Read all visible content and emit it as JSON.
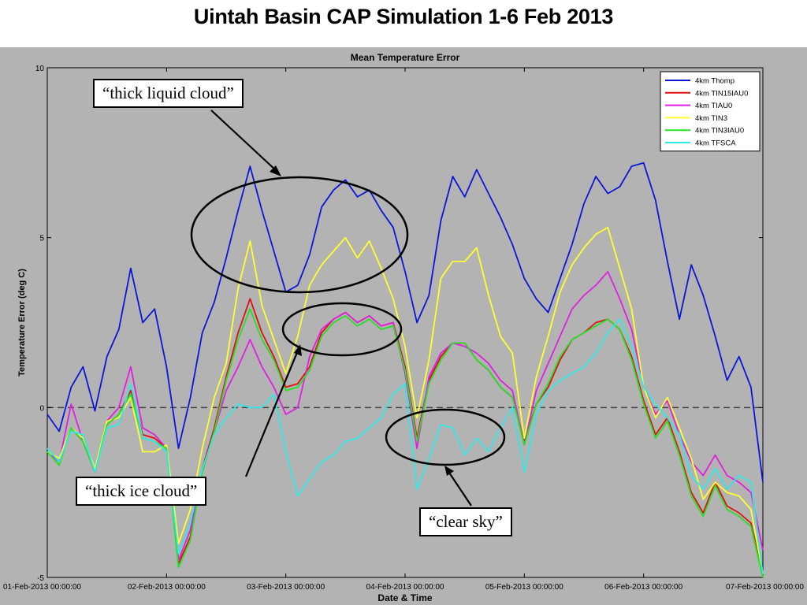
{
  "slide_title": "Uintah Basin CAP Simulation 1-6 Feb 2013",
  "callouts": {
    "liquid": "“thick liquid cloud”",
    "ice": "“thick ice cloud”",
    "clear": "“clear sky”"
  },
  "chart_data": {
    "type": "line",
    "title": "Mean Temperature Error",
    "xlabel": "Date & Time",
    "ylabel": "Temperature Error (deg C)",
    "ylim": [
      -5,
      10
    ],
    "yticks": [
      "-5",
      "0",
      "5",
      "10"
    ],
    "xlim": [
      "01-Feb-2013 00:00:00",
      "07-Feb-2013 00:00:00"
    ],
    "xticks": [
      "01-Feb-2013 00:00:00",
      "02-Feb-2013 00:00:00",
      "03-Feb-2013 00:00:00",
      "04-Feb-2013 00:00:00",
      "05-Feb-2013 00:00:00",
      "06-Feb-2013 00:00:00",
      "07-Feb-2013 00:00:00"
    ],
    "x_days": [
      0,
      0.1,
      0.2,
      0.3,
      0.4,
      0.5,
      0.6,
      0.7,
      0.8,
      0.9,
      1,
      1.1,
      1.2,
      1.3,
      1.4,
      1.5,
      1.6,
      1.7,
      1.8,
      1.9,
      2,
      2.1,
      2.2,
      2.3,
      2.4,
      2.5,
      2.6,
      2.7,
      2.8,
      2.9,
      3,
      3.1,
      3.2,
      3.3,
      3.4,
      3.5,
      3.6,
      3.7,
      3.8,
      3.9,
      4,
      4.1,
      4.2,
      4.3,
      4.4,
      4.5,
      4.6,
      4.7,
      4.8,
      4.9,
      5,
      5.1,
      5.2,
      5.3,
      5.4,
      5.5,
      5.6,
      5.7,
      5.8,
      5.9,
      6
    ],
    "zero_line": "dashed",
    "legend_position": "top-right",
    "series": [
      {
        "name": "4km Thomp",
        "color": "#0b17d6",
        "values": [
          -0.2,
          -0.7,
          0.6,
          1.2,
          -0.1,
          1.5,
          2.3,
          4.1,
          2.5,
          2.9,
          1.2,
          -1.2,
          0.3,
          2.2,
          3.1,
          4.4,
          5.8,
          7.1,
          5.8,
          4.6,
          3.4,
          3.6,
          4.5,
          5.9,
          6.4,
          6.7,
          6.2,
          6.4,
          5.8,
          5.3,
          4.0,
          2.5,
          3.3,
          5.5,
          6.8,
          6.2,
          7.0,
          6.3,
          5.6,
          4.8,
          3.8,
          3.2,
          2.8,
          3.8,
          4.8,
          6.0,
          6.8,
          6.3,
          6.5,
          7.1,
          7.2,
          6.1,
          4.3,
          2.6,
          4.2,
          3.3,
          2.1,
          0.8,
          1.5,
          0.6,
          -2.2
        ]
      },
      {
        "name": "4km TIN15IAU0",
        "color": "#e01010",
        "values": [
          -1.3,
          -1.6,
          -0.6,
          -1.0,
          -1.9,
          -0.5,
          -0.2,
          0.5,
          -0.8,
          -0.9,
          -1.2,
          -4.6,
          -3.8,
          -1.8,
          -0.6,
          0.9,
          2.2,
          3.2,
          2.2,
          1.5,
          0.6,
          0.7,
          1.2,
          2.2,
          2.6,
          2.8,
          2.5,
          2.7,
          2.4,
          2.5,
          1.2,
          -0.9,
          0.8,
          1.5,
          1.9,
          1.9,
          1.4,
          1.1,
          0.6,
          0.3,
          -1.0,
          0.1,
          0.6,
          1.4,
          2.0,
          2.2,
          2.5,
          2.6,
          2.3,
          1.5,
          0.2,
          -0.8,
          -0.3,
          -1.3,
          -2.5,
          -3.1,
          -2.2,
          -2.9,
          -3.1,
          -3.4,
          -4.9
        ]
      },
      {
        "name": "4km TIAU0",
        "color": "#e020e0",
        "values": [
          -1.3,
          -1.6,
          0.1,
          -1.0,
          -1.9,
          -0.4,
          0.0,
          1.2,
          -0.6,
          -0.8,
          -1.2,
          -4.5,
          -3.6,
          -1.9,
          -0.7,
          0.5,
          1.2,
          2.0,
          1.2,
          0.6,
          -0.2,
          0.0,
          1.5,
          2.3,
          2.6,
          2.8,
          2.5,
          2.7,
          2.4,
          2.5,
          1.0,
          -1.2,
          0.9,
          1.6,
          1.9,
          1.8,
          1.6,
          1.3,
          0.8,
          0.5,
          -1.1,
          0.5,
          1.3,
          2.1,
          2.9,
          3.3,
          3.6,
          4.0,
          3.2,
          2.3,
          0.6,
          -0.2,
          0.2,
          -0.8,
          -1.6,
          -2.0,
          -1.4,
          -2.0,
          -2.2,
          -2.5,
          -4.2
        ]
      },
      {
        "name": "4km TIN3",
        "color": "#ffff30",
        "values": [
          -1.3,
          -1.5,
          -0.6,
          -0.9,
          -1.8,
          -0.4,
          -0.3,
          0.3,
          -1.3,
          -1.3,
          -1.1,
          -4.0,
          -3.0,
          -1.2,
          0.3,
          1.3,
          3.5,
          4.9,
          3.0,
          2.0,
          1.0,
          2.1,
          3.6,
          4.2,
          4.6,
          5.0,
          4.4,
          4.9,
          4.1,
          3.2,
          1.8,
          -0.3,
          1.4,
          3.8,
          4.3,
          4.3,
          4.7,
          3.3,
          2.1,
          1.6,
          -0.9,
          0.9,
          2.1,
          3.4,
          4.2,
          4.7,
          5.1,
          5.3,
          4.1,
          2.9,
          0.6,
          -0.3,
          0.3,
          -0.6,
          -1.5,
          -2.7,
          -2.2,
          -2.5,
          -2.6,
          -3.0,
          -4.9
        ]
      },
      {
        "name": "4km TIN3IAU0",
        "color": "#25e025",
        "values": [
          -1.3,
          -1.7,
          -0.6,
          -1.0,
          -1.9,
          -0.5,
          -0.2,
          0.4,
          -0.9,
          -1.0,
          -1.2,
          -4.7,
          -3.9,
          -1.9,
          -0.7,
          0.8,
          2.0,
          2.9,
          2.0,
          1.4,
          0.5,
          0.6,
          1.1,
          2.1,
          2.5,
          2.7,
          2.4,
          2.6,
          2.3,
          2.4,
          1.1,
          -1.0,
          0.7,
          1.4,
          1.9,
          1.9,
          1.4,
          1.1,
          0.6,
          0.3,
          -1.1,
          0.1,
          0.7,
          1.5,
          2.0,
          2.2,
          2.4,
          2.6,
          2.3,
          1.4,
          0.1,
          -0.9,
          -0.4,
          -1.4,
          -2.6,
          -3.2,
          -2.3,
          -3.0,
          -3.2,
          -3.5,
          -5.0
        ]
      },
      {
        "name": "4km TFSCA",
        "color": "#30e8e8",
        "values": [
          -1.2,
          -1.6,
          -0.7,
          -0.8,
          -1.9,
          -0.6,
          -0.5,
          0.7,
          -0.9,
          -1.0,
          -1.3,
          -4.3,
          -3.4,
          -1.8,
          -0.8,
          -0.3,
          0.1,
          0.0,
          0.0,
          0.4,
          -1.3,
          -2.6,
          -2.1,
          -1.6,
          -1.4,
          -1.0,
          -0.9,
          -0.6,
          -0.3,
          0.4,
          0.7,
          -2.4,
          -1.5,
          -0.5,
          -0.6,
          -1.4,
          -0.9,
          -1.3,
          -0.6,
          0.0,
          -1.9,
          -0.2,
          0.5,
          0.8,
          1.0,
          1.2,
          1.6,
          2.2,
          2.6,
          1.8,
          0.6,
          0.1,
          -0.3,
          -0.8,
          -2.0,
          -2.4,
          -1.8,
          -2.4,
          -2.0,
          -2.2,
          -4.9
        ]
      }
    ]
  }
}
